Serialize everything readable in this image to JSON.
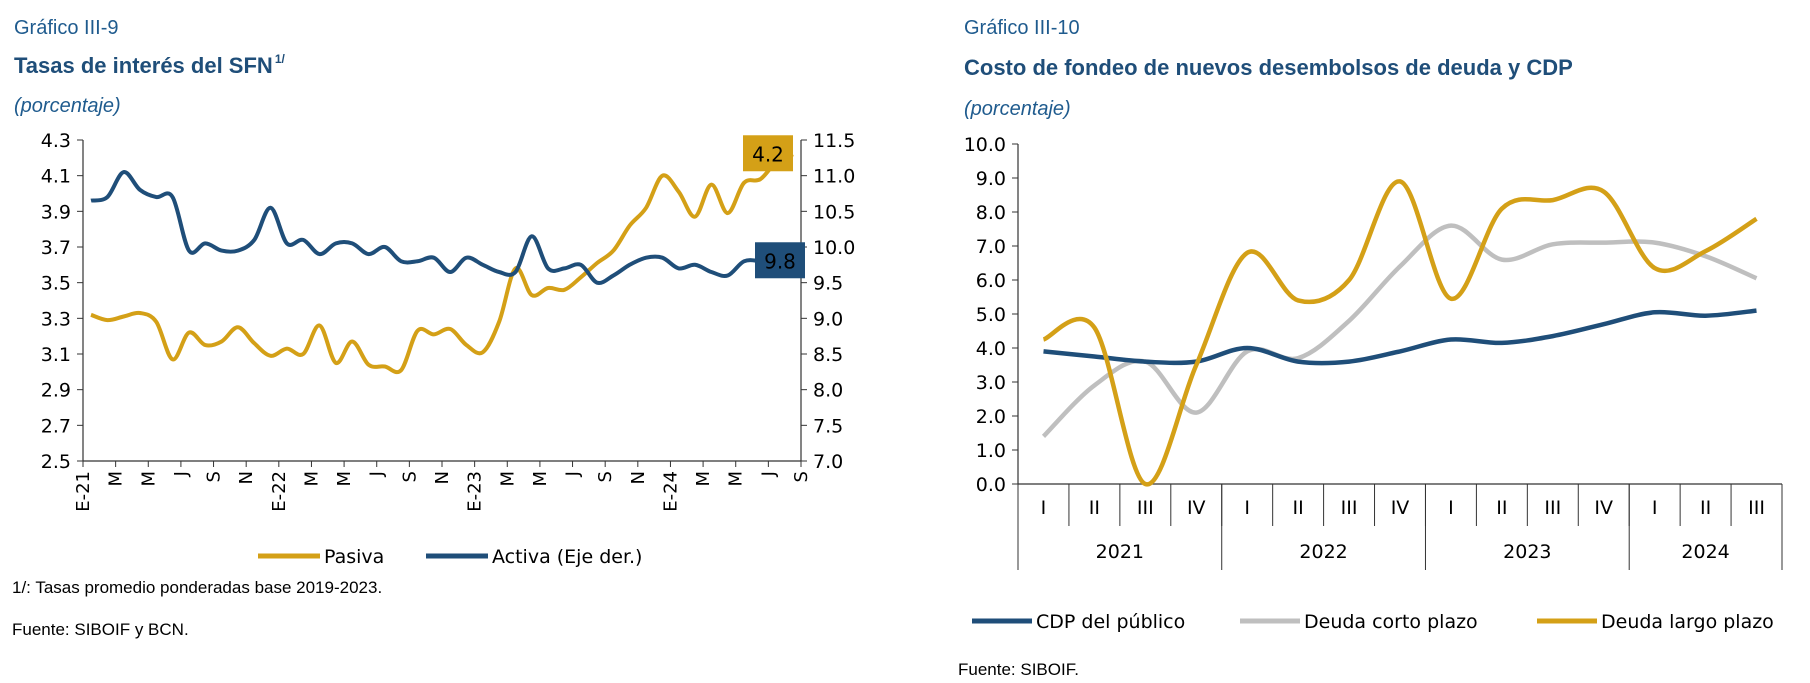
{
  "left": {
    "label": "Gráfico III-9",
    "title": "Tasas de interés del SFN",
    "title_sup": "1/",
    "subtitle": "(porcentaje)",
    "footnote": "1/:  Tasas promedio ponderadas base 2019-2023.",
    "source": "Fuente:  SIBOIF y BCN."
  },
  "right": {
    "label": "Gráfico III-10",
    "title": "Costo de fondeo de nuevos desembolsos de deuda y CDP",
    "subtitle": "(porcentaje)",
    "source": "Fuente:  SIBOIF."
  },
  "chart_data": [
    {
      "type": "line",
      "y_left": {
        "ticks": [
          "4.3",
          "4.1",
          "3.9",
          "3.7",
          "3.5",
          "3.3",
          "3.1",
          "2.9",
          "2.7",
          "2.5"
        ],
        "range": [
          2.5,
          4.3
        ]
      },
      "y_right": {
        "ticks": [
          "11.5",
          "11.0",
          "10.5",
          "10.0",
          "9.5",
          "9.0",
          "8.5",
          "8.0",
          "7.5",
          "7.0"
        ],
        "range": [
          7.0,
          11.5
        ]
      },
      "x_tick_labels": [
        "E-21",
        "M",
        "M",
        "J",
        "S",
        "N",
        "E-22",
        "M",
        "M",
        "J",
        "S",
        "N",
        "E-23",
        "M",
        "M",
        "J",
        "S",
        "N",
        "E-24",
        "M",
        "M",
        "J",
        "S"
      ],
      "colors": {
        "pasiva": "#d4a017",
        "activa": "#1f4e79"
      },
      "series": [
        {
          "name": "Pasiva",
          "axis": "left",
          "values": [
            3.32,
            3.29,
            3.31,
            3.33,
            3.28,
            3.07,
            3.22,
            3.15,
            3.17,
            3.25,
            3.16,
            3.09,
            3.13,
            3.1,
            3.26,
            3.05,
            3.17,
            3.04,
            3.03,
            3.01,
            3.23,
            3.21,
            3.24,
            3.15,
            3.11,
            3.28,
            3.58,
            3.43,
            3.47,
            3.46,
            3.53,
            3.61,
            3.68,
            3.82,
            3.92,
            4.1,
            4.01,
            3.87,
            4.05,
            3.89,
            4.06,
            4.08,
            4.18,
            4.22
          ]
        },
        {
          "name": "Activa (Eje der.)",
          "axis": "right",
          "values": [
            10.65,
            10.7,
            11.05,
            10.8,
            10.7,
            10.7,
            9.95,
            10.05,
            9.95,
            9.95,
            10.1,
            10.55,
            10.05,
            10.1,
            9.9,
            10.05,
            10.05,
            9.9,
            10.0,
            9.8,
            9.8,
            9.85,
            9.65,
            9.85,
            9.75,
            9.65,
            9.65,
            10.15,
            9.7,
            9.7,
            9.75,
            9.5,
            9.6,
            9.75,
            9.85,
            9.85,
            9.7,
            9.75,
            9.65,
            9.6,
            9.8,
            9.8,
            9.75,
            9.8
          ]
        }
      ],
      "last_value_labels": {
        "pasiva": "4.2",
        "activa": "9.8"
      },
      "legend": [
        "Pasiva",
        "Activa (Eje der.)"
      ]
    },
    {
      "type": "line",
      "y": {
        "ticks": [
          "10.0",
          "9.0",
          "8.0",
          "7.0",
          "6.0",
          "5.0",
          "4.0",
          "3.0",
          "2.0",
          "1.0",
          "0.0"
        ],
        "range": [
          0,
          10
        ]
      },
      "quarters": [
        "I",
        "II",
        "III",
        "IV",
        "I",
        "II",
        "III",
        "IV",
        "I",
        "II",
        "III",
        "IV",
        "I",
        "II",
        "III"
      ],
      "years": [
        "2021",
        "2022",
        "2023",
        "2024"
      ],
      "colors": {
        "cdp": "#1f4e79",
        "corto": "#bfbfbf",
        "largo": "#d4a017"
      },
      "series": [
        {
          "name": "CDP del público",
          "values": [
            3.9,
            3.75,
            3.6,
            3.6,
            4.0,
            3.6,
            3.6,
            3.9,
            4.25,
            4.15,
            4.35,
            4.7,
            5.05,
            4.95,
            5.1
          ]
        },
        {
          "name": "Deuda corto plazo",
          "values": [
            1.4,
            2.9,
            3.6,
            2.1,
            3.9,
            3.7,
            4.8,
            6.4,
            7.6,
            6.6,
            7.05,
            7.1,
            7.1,
            6.7,
            6.05
          ]
        },
        {
          "name": "Deuda largo plazo",
          "values": [
            4.25,
            4.6,
            0.0,
            3.5,
            6.8,
            5.4,
            6.0,
            8.9,
            5.45,
            8.1,
            8.35,
            8.6,
            6.35,
            6.85,
            7.8
          ]
        }
      ],
      "legend": [
        "CDP del público",
        "Deuda corto plazo",
        "Deuda largo plazo"
      ]
    }
  ]
}
